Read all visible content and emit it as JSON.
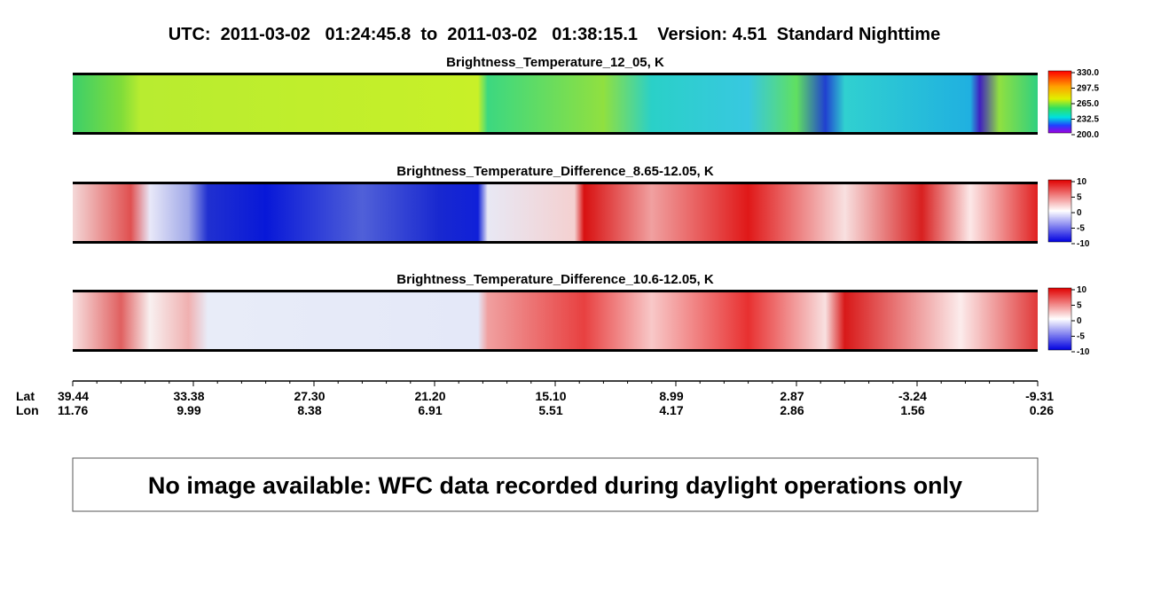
{
  "title": "UTC:  2011-03-02   01:24:45.8  to  2011-03-02   01:38:15.1    Version: 4.51  Standard Nighttime",
  "panels": [
    {
      "title": "Brightness_Temperature_12_05, K",
      "colorbar_ticks": [
        "330.0",
        "297.5",
        "265.0",
        "232.5",
        "200.0"
      ]
    },
    {
      "title": "Brightness_Temperature_Difference_8.65-12.05, K",
      "colorbar_ticks": [
        "10",
        "5",
        "0",
        "-5",
        "-10"
      ]
    },
    {
      "title": "Brightness_Temperature_Difference_10.6-12.05, K",
      "colorbar_ticks": [
        "10",
        "5",
        "0",
        "-5",
        "-10"
      ]
    }
  ],
  "axis": {
    "lat_label": "Lat",
    "lon_label": "Lon",
    "lat": [
      "39.44",
      "33.38",
      "27.30",
      "21.20",
      "15.10",
      "8.99",
      "2.87",
      "-3.24",
      "-9.31"
    ],
    "lon": [
      "11.76",
      "9.99",
      "8.38",
      "6.91",
      "5.51",
      "4.17",
      "2.86",
      "1.56",
      "0.26"
    ]
  },
  "message": "No image available: WFC data recorded during daylight operations only"
}
